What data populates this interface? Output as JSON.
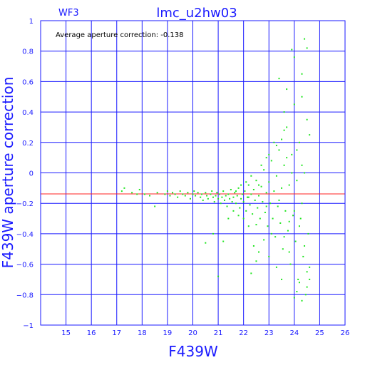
{
  "chart_data": {
    "type": "scatter",
    "title": "lmc_u2hw03",
    "panel_label": "WF3",
    "xlabel": "F439W",
    "ylabel": "F439W aperture correction",
    "annotation": "Average aperture correction: -0.138",
    "xlim": [
      14,
      26
    ],
    "ylim": [
      -1,
      1
    ],
    "x_ticks": [
      15,
      16,
      17,
      18,
      19,
      20,
      21,
      22,
      23,
      24,
      25,
      26
    ],
    "y_ticks": [
      -1,
      -0.8,
      -0.6,
      -0.4,
      -0.2,
      0,
      0.2,
      0.4,
      0.6,
      0.8,
      1
    ],
    "y_tick_labels": [
      "−1",
      "−0.8",
      "−0.6",
      "−0.4",
      "−0.2",
      "0",
      "0.2",
      "0.4",
      "0.6",
      "0.8",
      "1"
    ],
    "grid": true,
    "reference_line": {
      "y": -0.138
    },
    "colors": {
      "axes": "#1a1aff",
      "points": "#22e622",
      "reference_line": "#ff2020",
      "text": "#1a1aff"
    },
    "points": [
      [
        17.2,
        -0.12
      ],
      [
        17.3,
        -0.1
      ],
      [
        17.6,
        -0.13
      ],
      [
        17.8,
        -0.14
      ],
      [
        17.9,
        -0.11
      ],
      [
        18.1,
        -0.14
      ],
      [
        18.3,
        -0.15
      ],
      [
        18.6,
        -0.13
      ],
      [
        18.5,
        -0.22
      ],
      [
        18.9,
        -0.14
      ],
      [
        19.0,
        -0.12
      ],
      [
        19.1,
        -0.15
      ],
      [
        19.2,
        -0.13
      ],
      [
        19.3,
        -0.14
      ],
      [
        19.4,
        -0.16
      ],
      [
        19.5,
        -0.12
      ],
      [
        19.6,
        -0.14
      ],
      [
        19.7,
        -0.15
      ],
      [
        19.8,
        -0.13
      ],
      [
        19.9,
        -0.17
      ],
      [
        20.0,
        -0.14
      ],
      [
        20.05,
        -0.12
      ],
      [
        20.1,
        -0.15
      ],
      [
        20.2,
        -0.13
      ],
      [
        20.3,
        -0.16
      ],
      [
        20.35,
        -0.14
      ],
      [
        20.4,
        -0.18
      ],
      [
        20.5,
        -0.13
      ],
      [
        20.55,
        -0.15
      ],
      [
        20.6,
        -0.17
      ],
      [
        20.7,
        -0.14
      ],
      [
        20.75,
        -0.12
      ],
      [
        20.8,
        -0.16
      ],
      [
        20.85,
        -0.19
      ],
      [
        20.9,
        -0.15
      ],
      [
        20.95,
        -0.13
      ],
      [
        21.0,
        -0.17
      ],
      [
        21.05,
        -0.14
      ],
      [
        21.1,
        -0.2
      ],
      [
        21.15,
        -0.16
      ],
      [
        21.2,
        -0.12
      ],
      [
        21.25,
        -0.18
      ],
      [
        21.3,
        -0.15
      ],
      [
        21.35,
        -0.22
      ],
      [
        21.4,
        -0.14
      ],
      [
        21.45,
        -0.17
      ],
      [
        21.5,
        -0.11
      ],
      [
        21.55,
        -0.19
      ],
      [
        21.6,
        -0.16
      ],
      [
        21.65,
        -0.13
      ],
      [
        21.7,
        -0.2
      ],
      [
        21.75,
        -0.15
      ],
      [
        21.8,
        -0.1
      ],
      [
        21.85,
        -0.23
      ],
      [
        21.9,
        -0.17
      ],
      [
        21.95,
        -0.14
      ],
      [
        22.0,
        -0.19
      ],
      [
        22.05,
        -0.12
      ],
      [
        22.1,
        -0.25
      ],
      [
        22.15,
        -0.16
      ],
      [
        22.2,
        -0.08
      ],
      [
        22.25,
        -0.21
      ],
      [
        22.3,
        -0.14
      ],
      [
        22.35,
        -0.27
      ],
      [
        22.4,
        -0.11
      ],
      [
        22.45,
        -0.18
      ],
      [
        22.5,
        -0.05
      ],
      [
        22.55,
        -0.23
      ],
      [
        22.6,
        -0.15
      ],
      [
        22.65,
        -0.3
      ],
      [
        22.7,
        -0.09
      ],
      [
        22.75,
        -0.19
      ],
      [
        22.8,
        0.02
      ],
      [
        22.85,
        -0.26
      ],
      [
        22.9,
        -0.13
      ],
      [
        22.95,
        -0.35
      ],
      [
        23.0,
        -0.06
      ],
      [
        23.05,
        -0.2
      ],
      [
        23.1,
        0.08
      ],
      [
        23.15,
        -0.3
      ],
      [
        23.2,
        -0.12
      ],
      [
        23.25,
        -0.42
      ],
      [
        23.3,
        -0.02
      ],
      [
        23.35,
        -0.22
      ],
      [
        23.4,
        0.15
      ],
      [
        23.45,
        -0.33
      ],
      [
        23.5,
        -0.1
      ],
      [
        23.55,
        -0.5
      ],
      [
        23.6,
        0.05
      ],
      [
        23.65,
        -0.25
      ],
      [
        23.7,
        0.3
      ],
      [
        23.75,
        -0.38
      ],
      [
        23.8,
        -0.08
      ],
      [
        23.85,
        -0.6
      ],
      [
        23.9,
        0.12
      ],
      [
        23.95,
        -0.28
      ],
      [
        24.0,
        0.45
      ],
      [
        24.05,
        -0.45
      ],
      [
        24.1,
        -0.05
      ],
      [
        24.15,
        -0.7
      ],
      [
        24.2,
        0.2
      ],
      [
        24.25,
        -0.3
      ],
      [
        24.3,
        0.65
      ],
      [
        24.35,
        -0.55
      ],
      [
        24.4,
        0.0
      ],
      [
        24.45,
        -0.8
      ],
      [
        24.5,
        0.35
      ],
      [
        24.55,
        -0.4
      ],
      [
        24.4,
        0.88
      ],
      [
        24.5,
        0.82
      ],
      [
        23.9,
        0.81
      ],
      [
        24.0,
        0.76
      ],
      [
        23.6,
        0.4
      ],
      [
        23.7,
        0.55
      ],
      [
        23.4,
        0.62
      ],
      [
        24.3,
        0.5
      ],
      [
        24.6,
        0.25
      ],
      [
        24.6,
        -0.62
      ],
      [
        24.5,
        -0.75
      ],
      [
        24.2,
        -0.72
      ],
      [
        24.1,
        -0.78
      ],
      [
        24.3,
        -0.84
      ],
      [
        24.0,
        -0.82
      ],
      [
        22.4,
        -0.48
      ],
      [
        22.5,
        -0.58
      ],
      [
        22.3,
        -0.66
      ],
      [
        21.2,
        -0.45
      ],
      [
        21.0,
        -0.68
      ],
      [
        20.8,
        -0.4
      ],
      [
        20.5,
        -0.46
      ],
      [
        22.6,
        -0.52
      ],
      [
        23.0,
        -0.55
      ],
      [
        23.3,
        -0.62
      ],
      [
        22.8,
        -0.44
      ],
      [
        23.5,
        -0.7
      ],
      [
        23.8,
        -0.52
      ],
      [
        22.9,
        0.1
      ],
      [
        22.7,
        0.05
      ],
      [
        23.2,
        0.2
      ],
      [
        23.6,
        0.28
      ],
      [
        23.1,
        -0.4
      ],
      [
        22.2,
        -0.35
      ],
      [
        22.0,
        -0.3
      ],
      [
        21.8,
        -0.28
      ],
      [
        21.6,
        -0.25
      ],
      [
        21.4,
        -0.3
      ],
      [
        22.6,
        -0.08
      ],
      [
        22.3,
        -0.02
      ],
      [
        22.1,
        -0.06
      ],
      [
        21.9,
        -0.08
      ],
      [
        23.0,
        0.12
      ],
      [
        23.3,
        0.18
      ],
      [
        23.5,
        0.22
      ],
      [
        23.7,
        0.1
      ],
      [
        23.9,
        0.0
      ],
      [
        24.1,
        0.15
      ],
      [
        24.3,
        0.05
      ],
      [
        24.0,
        -0.25
      ],
      [
        24.2,
        -0.35
      ],
      [
        24.4,
        -0.48
      ],
      [
        23.4,
        -0.18
      ],
      [
        23.8,
        -0.32
      ],
      [
        22.9,
        -0.22
      ],
      [
        22.5,
        -0.34
      ],
      [
        22.2,
        -0.16
      ],
      [
        21.7,
        -0.12
      ],
      [
        23.6,
        -0.42
      ],
      [
        24.5,
        -0.65
      ],
      [
        24.6,
        -0.7
      ],
      [
        24.3,
        -0.2
      ]
    ]
  }
}
